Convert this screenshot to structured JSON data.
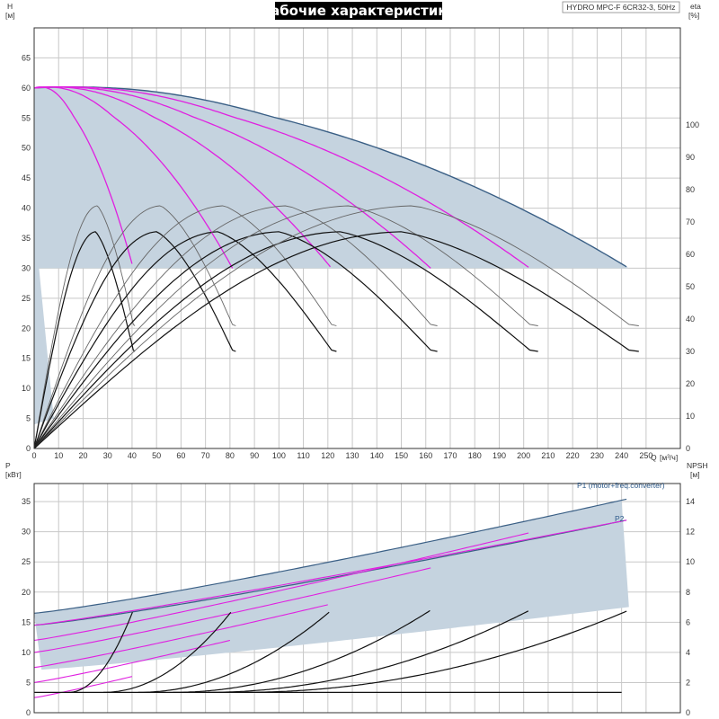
{
  "chart_data": [
    {
      "type": "line",
      "title": "Рабочие характеристики",
      "model": "HYDRO MPC-F 6CR32-3, 50Hz",
      "left_axis": {
        "label_line1": "H",
        "label_line2": "[м]",
        "range": [
          0,
          70
        ],
        "ticks": [
          0,
          5,
          10,
          15,
          20,
          25,
          30,
          35,
          40,
          45,
          50,
          55,
          60,
          65
        ]
      },
      "right_axis": {
        "label_line1": "eta",
        "label_line2": "[%]",
        "range": [
          0,
          130
        ],
        "ticks": [
          0,
          10,
          20,
          30,
          40,
          50,
          60,
          70,
          80,
          90,
          100
        ]
      },
      "x_axis": {
        "label": "Q",
        "unit": "[м³/ч]",
        "range": [
          0,
          260
        ],
        "ticks": [
          0,
          10,
          20,
          30,
          40,
          50,
          60,
          70,
          80,
          90,
          100,
          110,
          120,
          130,
          140,
          150,
          160,
          170,
          180,
          190,
          200,
          210,
          220,
          230,
          240,
          250
        ]
      },
      "pump_curves_head": [
        {
          "q_max": 40.5,
          "h0": 60,
          "h_end": 30
        },
        {
          "q_max": 81,
          "h0": 60,
          "h_end": 30
        },
        {
          "q_max": 121.5,
          "h0": 60,
          "h_end": 30
        },
        {
          "q_max": 162,
          "h0": 60,
          "h_end": 30
        },
        {
          "q_max": 202.5,
          "h0": 60,
          "h_end": 30
        },
        {
          "q_max": 243,
          "h0": 60,
          "h_end": 30
        }
      ],
      "efficiency_curves": [
        {
          "q_end": 40.5,
          "eta_peak": 75,
          "eta_end": 55
        },
        {
          "q_end": 81,
          "eta_peak": 75,
          "eta_end": 55
        },
        {
          "q_end": 121.5,
          "eta_peak": 75,
          "eta_end": 55
        },
        {
          "q_end": 162,
          "eta_peak": 75,
          "eta_end": 55
        },
        {
          "q_end": 202.5,
          "eta_peak": 75,
          "eta_end": 55
        },
        {
          "q_end": 243,
          "eta_peak": 75,
          "eta_end": 55
        }
      ],
      "grid": true
    },
    {
      "type": "line",
      "left_axis": {
        "label_line1": "P",
        "label_line2": "[кВт]",
        "range": [
          0,
          38
        ],
        "ticks": [
          0,
          5,
          10,
          15,
          20,
          25,
          30,
          35
        ]
      },
      "right_axis": {
        "label_line1": "NPSH",
        "label_line2": "[м]",
        "range": [
          0,
          15.2
        ],
        "ticks": [
          0,
          2,
          4,
          6,
          8,
          10,
          12,
          14
        ]
      },
      "series": [
        {
          "name": "P1 (motor+freq.converter)",
          "p0": 16.5,
          "p_end": 35.5,
          "q_end": 243
        },
        {
          "name": "P2",
          "p0": 14.5,
          "p_end": 32,
          "q_end": 243
        }
      ],
      "power_curves_magenta": [
        {
          "q_end": 40,
          "p0": 2.5,
          "p_end": 6
        },
        {
          "q_end": 80,
          "p0": 5,
          "p_end": 12
        },
        {
          "q_end": 121,
          "p0": 7.5,
          "p_end": 18
        },
        {
          "q_end": 162,
          "p0": 10,
          "p_end": 24
        },
        {
          "q_end": 202,
          "p0": 12,
          "p_end": 29.8
        },
        {
          "q_end": 243,
          "p0": 14.5,
          "p_end": 32
        }
      ],
      "npsh_curves": [
        {
          "q_end": 40.5,
          "npsh_end": 6.8
        },
        {
          "q_end": 81,
          "npsh_end": 6.8
        },
        {
          "q_end": 121.5,
          "npsh_end": 6.8
        },
        {
          "q_end": 162,
          "npsh_end": 6.8
        },
        {
          "q_end": 202.5,
          "npsh_end": 6.8
        },
        {
          "q_end": 243,
          "npsh_end": 6.8
        }
      ],
      "npsh_base": 1.35,
      "grid": true
    }
  ],
  "colors": {
    "band": "#c5d3df",
    "blue": "#3a5f85",
    "magenta": "#e020e0",
    "black": "#111111",
    "grey": "#666666"
  }
}
